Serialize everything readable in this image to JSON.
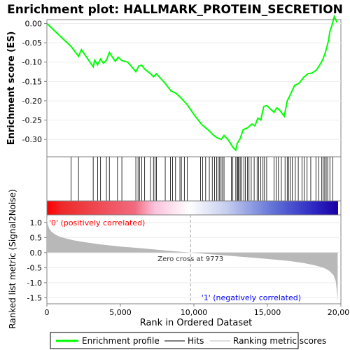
{
  "chart_data": [
    {
      "type": "line",
      "title": "Enrichment plot: HALLMARK_PROTEIN_SECRETION",
      "ylabel": "Enrichment score (ES)",
      "xlim": [
        0,
        20000
      ],
      "ylim": [
        -0.345,
        0.01
      ],
      "yticks": [
        0.0,
        -0.05,
        -0.1,
        -0.15,
        -0.2,
        -0.25,
        -0.3
      ],
      "ytick_labels": [
        "0.00",
        "-0.05",
        "-0.10",
        "-0.15",
        "-0.20",
        "-0.25",
        "-0.30"
      ],
      "series": [
        {
          "name": "Enrichment profile",
          "color": "#00ff00",
          "x": [
            0,
            1650,
            2150,
            2350,
            3150,
            3250,
            3450,
            3650,
            3850,
            4050,
            4250,
            4650,
            4850,
            5100,
            5500,
            6050,
            6250,
            6450,
            6650,
            7050,
            7250,
            7450,
            8050,
            8450,
            8750,
            9050,
            9550,
            10050,
            10550,
            11050,
            11350,
            11550,
            11850,
            12050,
            12350,
            12650,
            12850,
            12950,
            13150,
            13350,
            13650,
            13950,
            14150,
            14350,
            14550,
            14750,
            14950,
            15450,
            15650,
            15850,
            16150,
            16350,
            16550,
            16850,
            17150,
            17450,
            17750,
            18050,
            18350,
            18550,
            18750,
            18950,
            19050,
            19150,
            19250,
            19350,
            19550,
            19750
          ],
          "y": [
            0.0,
            -0.06,
            -0.085,
            -0.068,
            -0.112,
            -0.095,
            -0.107,
            -0.092,
            -0.103,
            -0.095,
            -0.075,
            -0.098,
            -0.087,
            -0.096,
            -0.1,
            -0.125,
            -0.11,
            -0.108,
            -0.118,
            -0.13,
            -0.138,
            -0.13,
            -0.155,
            -0.175,
            -0.18,
            -0.19,
            -0.21,
            -0.238,
            -0.262,
            -0.278,
            -0.29,
            -0.295,
            -0.3,
            -0.29,
            -0.302,
            -0.32,
            -0.328,
            -0.31,
            -0.298,
            -0.275,
            -0.27,
            -0.26,
            -0.265,
            -0.245,
            -0.25,
            -0.215,
            -0.212,
            -0.23,
            -0.218,
            -0.225,
            -0.24,
            -0.2,
            -0.185,
            -0.16,
            -0.155,
            -0.14,
            -0.13,
            -0.128,
            -0.12,
            -0.108,
            -0.095,
            -0.075,
            -0.06,
            -0.045,
            -0.02,
            -0.01,
            0.018,
            0.002
          ]
        }
      ]
    },
    {
      "type": "scatter",
      "name": "Hits",
      "hit_color": "#000000",
      "xlim": [
        0,
        20000
      ],
      "x": [
        1650,
        2150,
        3150,
        3450,
        3650,
        4050,
        4250,
        4800,
        5100,
        6050,
        6200,
        6300,
        6450,
        6650,
        7050,
        7250,
        7350,
        7450,
        8050,
        8400,
        8550,
        8750,
        9050,
        9150,
        9350,
        9550,
        10450,
        10600,
        10800,
        11050,
        11250,
        11400,
        11550,
        11650,
        11750,
        11850,
        11950,
        12050,
        12550,
        12650,
        12850,
        12950,
        13000,
        13050,
        13150,
        13250,
        13400,
        13500,
        13650,
        13750,
        13900,
        14100,
        14300,
        14400,
        14550,
        14700,
        14800,
        14950,
        15450,
        15600,
        15750,
        15950,
        16200,
        16350,
        16450,
        16550,
        16700,
        16900,
        17100,
        17350,
        17500,
        17700,
        17950,
        18300,
        18500,
        18700,
        18800,
        18900,
        19000,
        19100,
        19250,
        19450
      ],
      "heatmap_colors": [
        "#ff0000",
        "#ee2a2a",
        "#f16a7e",
        "#fbc2dc",
        "#ffffff",
        "#c5cdee",
        "#6172d6",
        "#2e28c3",
        "#1a00a6"
      ],
      "heatmap_stops": [
        0.0,
        0.05,
        0.3,
        0.37,
        0.49,
        0.62,
        0.78,
        0.92,
        1.0
      ]
    },
    {
      "type": "area",
      "ylabel": "Ranked list metric (Signal2Noise)",
      "xlabel": "Rank in Ordered Dataset",
      "xlim": [
        0,
        20000
      ],
      "ylim": [
        -1.7,
        1.25
      ],
      "xticks": [
        0,
        5000,
        10000,
        15000,
        20000
      ],
      "xtick_labels": [
        "0",
        "5,000",
        "10,000",
        "15,000",
        "20,000"
      ],
      "yticks": [
        1.0,
        0.5,
        0.0,
        -0.5,
        -1.0,
        -1.5
      ],
      "ytick_labels": [
        "1.0",
        "0.5",
        "0.0",
        "-0.5",
        "-1.0",
        "-1.5"
      ],
      "fill_color": "#b8b8b8",
      "x": [
        0,
        50,
        150,
        300,
        500,
        800,
        1200,
        1800,
        2500,
        3500,
        5000,
        6500,
        8000,
        9000,
        9773,
        10500,
        12000,
        13500,
        15000,
        16500,
        17500,
        18200,
        18800,
        19200,
        19500,
        19650,
        19720,
        19780
      ],
      "y": [
        1.2,
        0.95,
        0.8,
        0.7,
        0.62,
        0.54,
        0.48,
        0.41,
        0.35,
        0.28,
        0.2,
        0.14,
        0.07,
        0.03,
        0.0,
        -0.03,
        -0.09,
        -0.15,
        -0.21,
        -0.28,
        -0.35,
        -0.42,
        -0.5,
        -0.6,
        -0.75,
        -0.95,
        -1.25,
        -1.6
      ],
      "annotations": {
        "zero_cross": "Zero cross at 9773",
        "zero_cross_rank": 9773,
        "positive_label": "'0' (positively correlated)",
        "negative_label": "'1' (negatively correlated)",
        "positive_color": "#ff0000",
        "negative_color": "#0000ff"
      }
    }
  ],
  "legend": {
    "items": [
      {
        "label": "Enrichment profile",
        "color": "#00ff00"
      },
      {
        "label": "Hits",
        "color": "#000000"
      },
      {
        "label": "Ranking metric scores",
        "color": "#b8b8b8"
      }
    ]
  }
}
